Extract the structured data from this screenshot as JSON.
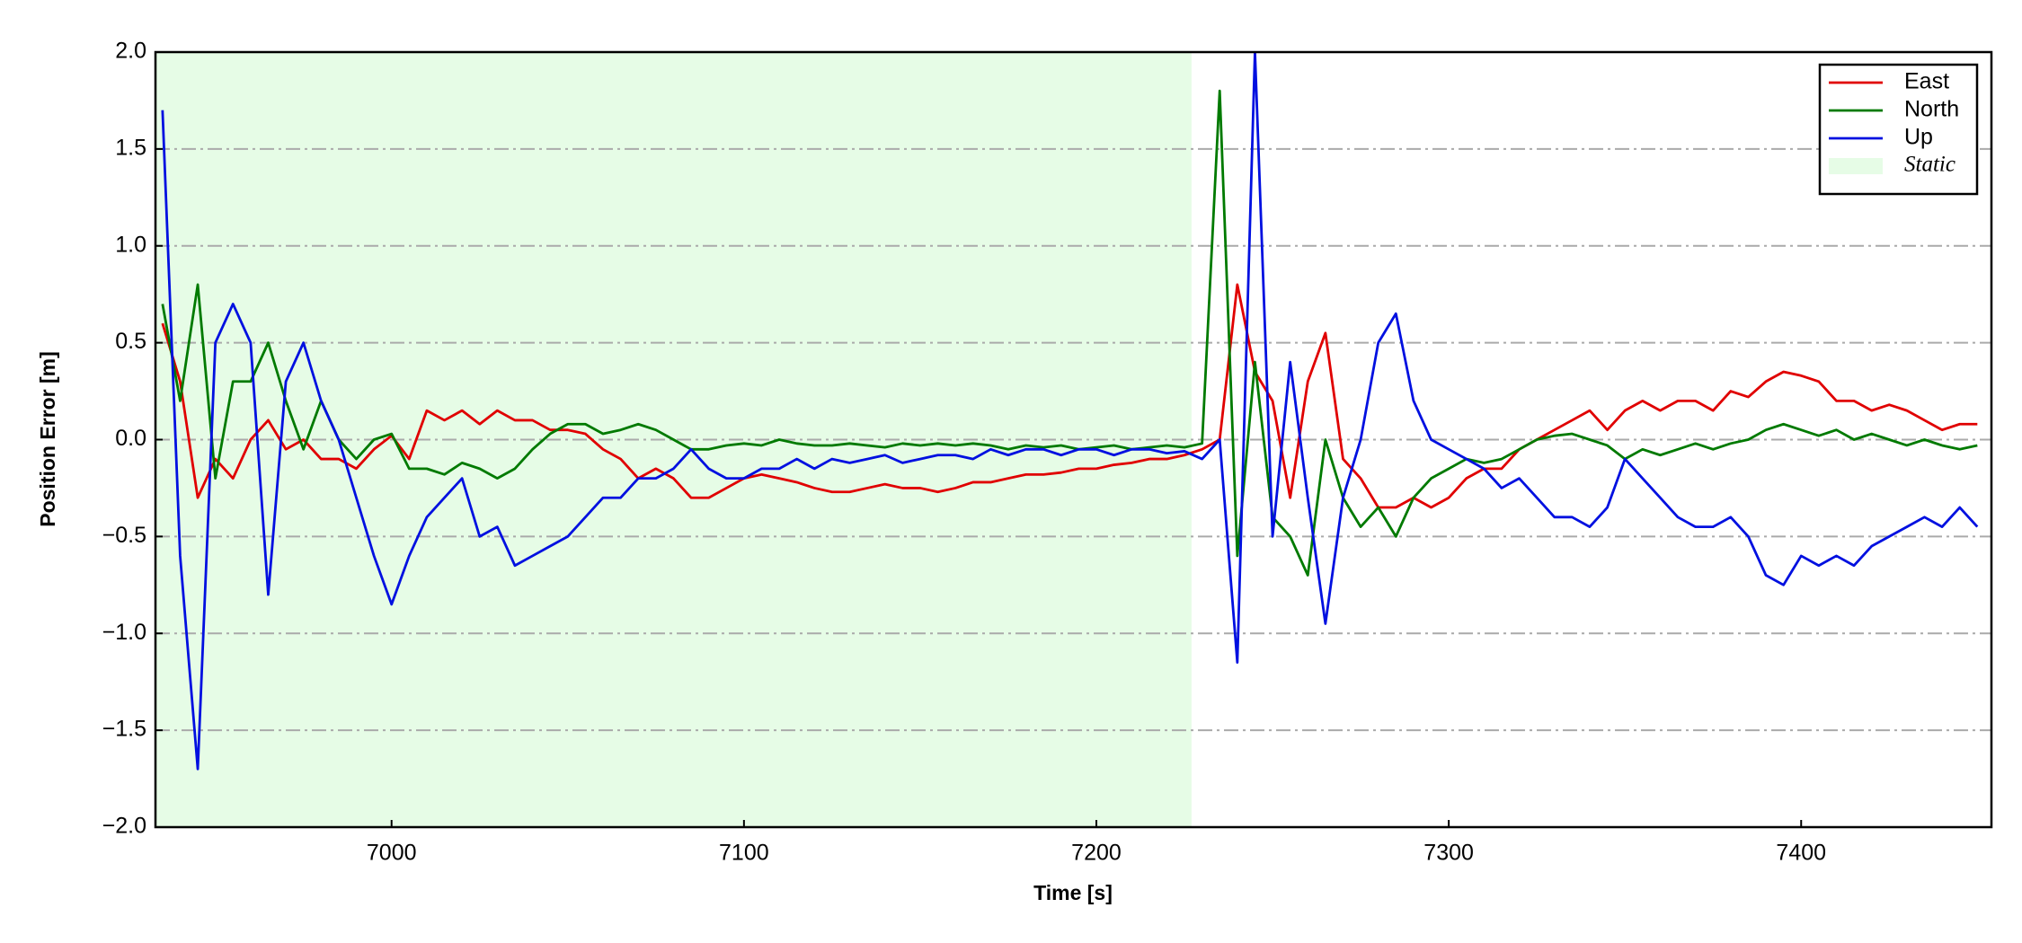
{
  "chart_data": {
    "type": "line",
    "xlabel": "Time [s]",
    "ylabel": "Position Error [m]",
    "xlim": [
      6933,
      7454
    ],
    "ylim": [
      -2.0,
      2.0
    ],
    "xticks": [
      7000,
      7100,
      7200,
      7300,
      7400
    ],
    "yticks": [
      {
        "value": -2.0,
        "label": "−2.0"
      },
      {
        "value": -1.5,
        "label": "−1.5"
      },
      {
        "value": -1.0,
        "label": "−1.0"
      },
      {
        "value": -0.5,
        "label": "−0.5"
      },
      {
        "value": 0.0,
        "label": "0.0"
      },
      {
        "value": 0.5,
        "label": "0.5"
      },
      {
        "value": 1.0,
        "label": "1.0"
      },
      {
        "value": 1.5,
        "label": "1.5"
      },
      {
        "value": 2.0,
        "label": "2.0"
      }
    ],
    "grid": true,
    "legend": "upper right",
    "spans": [
      {
        "name": "Static",
        "color": "#e6fce6",
        "start": 6933,
        "end": 7227
      }
    ],
    "x": [
      6935,
      6940,
      6945,
      6950,
      6955,
      6960,
      6965,
      6970,
      6975,
      6980,
      6985,
      6990,
      6995,
      7000,
      7005,
      7010,
      7015,
      7020,
      7025,
      7030,
      7035,
      7040,
      7045,
      7050,
      7055,
      7060,
      7065,
      7070,
      7075,
      7080,
      7085,
      7090,
      7095,
      7100,
      7105,
      7110,
      7115,
      7120,
      7125,
      7130,
      7135,
      7140,
      7145,
      7150,
      7155,
      7160,
      7165,
      7170,
      7175,
      7180,
      7185,
      7190,
      7195,
      7200,
      7205,
      7210,
      7215,
      7220,
      7225,
      7230,
      7235,
      7240,
      7245,
      7250,
      7255,
      7260,
      7265,
      7270,
      7275,
      7280,
      7285,
      7290,
      7295,
      7300,
      7305,
      7310,
      7315,
      7320,
      7325,
      7330,
      7335,
      7340,
      7345,
      7350,
      7355,
      7360,
      7365,
      7370,
      7375,
      7380,
      7385,
      7390,
      7395,
      7400,
      7405,
      7410,
      7415,
      7420,
      7425,
      7430,
      7435,
      7440,
      7445,
      7450
    ],
    "series": [
      {
        "name": "East",
        "color": "#e00000",
        "values": [
          0.6,
          0.3,
          -0.3,
          -0.1,
          -0.2,
          0.0,
          0.1,
          -0.05,
          0.0,
          -0.1,
          -0.1,
          -0.15,
          -0.05,
          0.02,
          -0.1,
          0.15,
          0.1,
          0.15,
          0.08,
          0.15,
          0.1,
          0.1,
          0.05,
          0.05,
          0.03,
          -0.05,
          -0.1,
          -0.2,
          -0.15,
          -0.2,
          -0.3,
          -0.3,
          -0.25,
          -0.2,
          -0.18,
          -0.2,
          -0.22,
          -0.25,
          -0.27,
          -0.27,
          -0.25,
          -0.23,
          -0.25,
          -0.25,
          -0.27,
          -0.25,
          -0.22,
          -0.22,
          -0.2,
          -0.18,
          -0.18,
          -0.17,
          -0.15,
          -0.15,
          -0.13,
          -0.12,
          -0.1,
          -0.1,
          -0.08,
          -0.05,
          0.0,
          0.8,
          0.35,
          0.2,
          -0.3,
          0.3,
          0.55,
          -0.1,
          -0.2,
          -0.35,
          -0.35,
          -0.3,
          -0.35,
          -0.3,
          -0.2,
          -0.15,
          -0.15,
          -0.05,
          0.0,
          0.05,
          0.1,
          0.15,
          0.05,
          0.15,
          0.2,
          0.15,
          0.2,
          0.2,
          0.15,
          0.25,
          0.22,
          0.3,
          0.35,
          0.33,
          0.3,
          0.2,
          0.2,
          0.15,
          0.18,
          0.15,
          0.1,
          0.05,
          0.08,
          0.08
        ]
      },
      {
        "name": "North",
        "color": "#007a00",
        "values": [
          0.7,
          0.2,
          0.8,
          -0.2,
          0.3,
          0.3,
          0.5,
          0.2,
          -0.05,
          0.2,
          0.0,
          -0.1,
          0.0,
          0.03,
          -0.15,
          -0.15,
          -0.18,
          -0.12,
          -0.15,
          -0.2,
          -0.15,
          -0.05,
          0.03,
          0.08,
          0.08,
          0.03,
          0.05,
          0.08,
          0.05,
          0.0,
          -0.05,
          -0.05,
          -0.03,
          -0.02,
          -0.03,
          0.0,
          -0.02,
          -0.03,
          -0.03,
          -0.02,
          -0.03,
          -0.04,
          -0.02,
          -0.03,
          -0.02,
          -0.03,
          -0.02,
          -0.03,
          -0.05,
          -0.03,
          -0.04,
          -0.03,
          -0.05,
          -0.04,
          -0.03,
          -0.05,
          -0.04,
          -0.03,
          -0.04,
          -0.02,
          1.8,
          -0.6,
          0.4,
          -0.4,
          -0.5,
          -0.7,
          0.0,
          -0.3,
          -0.45,
          -0.35,
          -0.5,
          -0.3,
          -0.2,
          -0.15,
          -0.1,
          -0.12,
          -0.1,
          -0.05,
          0.0,
          0.02,
          0.03,
          0.0,
          -0.03,
          -0.1,
          -0.05,
          -0.08,
          -0.05,
          -0.02,
          -0.05,
          -0.02,
          0.0,
          0.05,
          0.08,
          0.05,
          0.02,
          0.05,
          0.0,
          0.03,
          0.0,
          -0.03,
          0.0,
          -0.03,
          -0.05,
          -0.03
        ]
      },
      {
        "name": "Up",
        "color": "#0010e0",
        "values": [
          1.7,
          -0.6,
          -1.7,
          0.5,
          0.7,
          0.5,
          -0.8,
          0.3,
          0.5,
          0.2,
          0.0,
          -0.3,
          -0.6,
          -0.85,
          -0.6,
          -0.4,
          -0.3,
          -0.2,
          -0.5,
          -0.45,
          -0.65,
          -0.6,
          -0.55,
          -0.5,
          -0.4,
          -0.3,
          -0.3,
          -0.2,
          -0.2,
          -0.15,
          -0.05,
          -0.15,
          -0.2,
          -0.2,
          -0.15,
          -0.15,
          -0.1,
          -0.15,
          -0.1,
          -0.12,
          -0.1,
          -0.08,
          -0.12,
          -0.1,
          -0.08,
          -0.08,
          -0.1,
          -0.05,
          -0.08,
          -0.05,
          -0.05,
          -0.08,
          -0.05,
          -0.05,
          -0.08,
          -0.05,
          -0.05,
          -0.07,
          -0.06,
          -0.1,
          0.0,
          -1.15,
          2.0,
          -0.5,
          0.4,
          -0.3,
          -0.95,
          -0.3,
          0.0,
          0.5,
          0.65,
          0.2,
          0.0,
          -0.05,
          -0.1,
          -0.15,
          -0.25,
          -0.2,
          -0.3,
          -0.4,
          -0.4,
          -0.45,
          -0.35,
          -0.1,
          -0.2,
          -0.3,
          -0.4,
          -0.45,
          -0.45,
          -0.4,
          -0.5,
          -0.7,
          -0.75,
          -0.6,
          -0.65,
          -0.6,
          -0.65,
          -0.55,
          -0.5,
          -0.45,
          -0.4,
          -0.45,
          -0.35,
          -0.45
        ]
      }
    ]
  }
}
